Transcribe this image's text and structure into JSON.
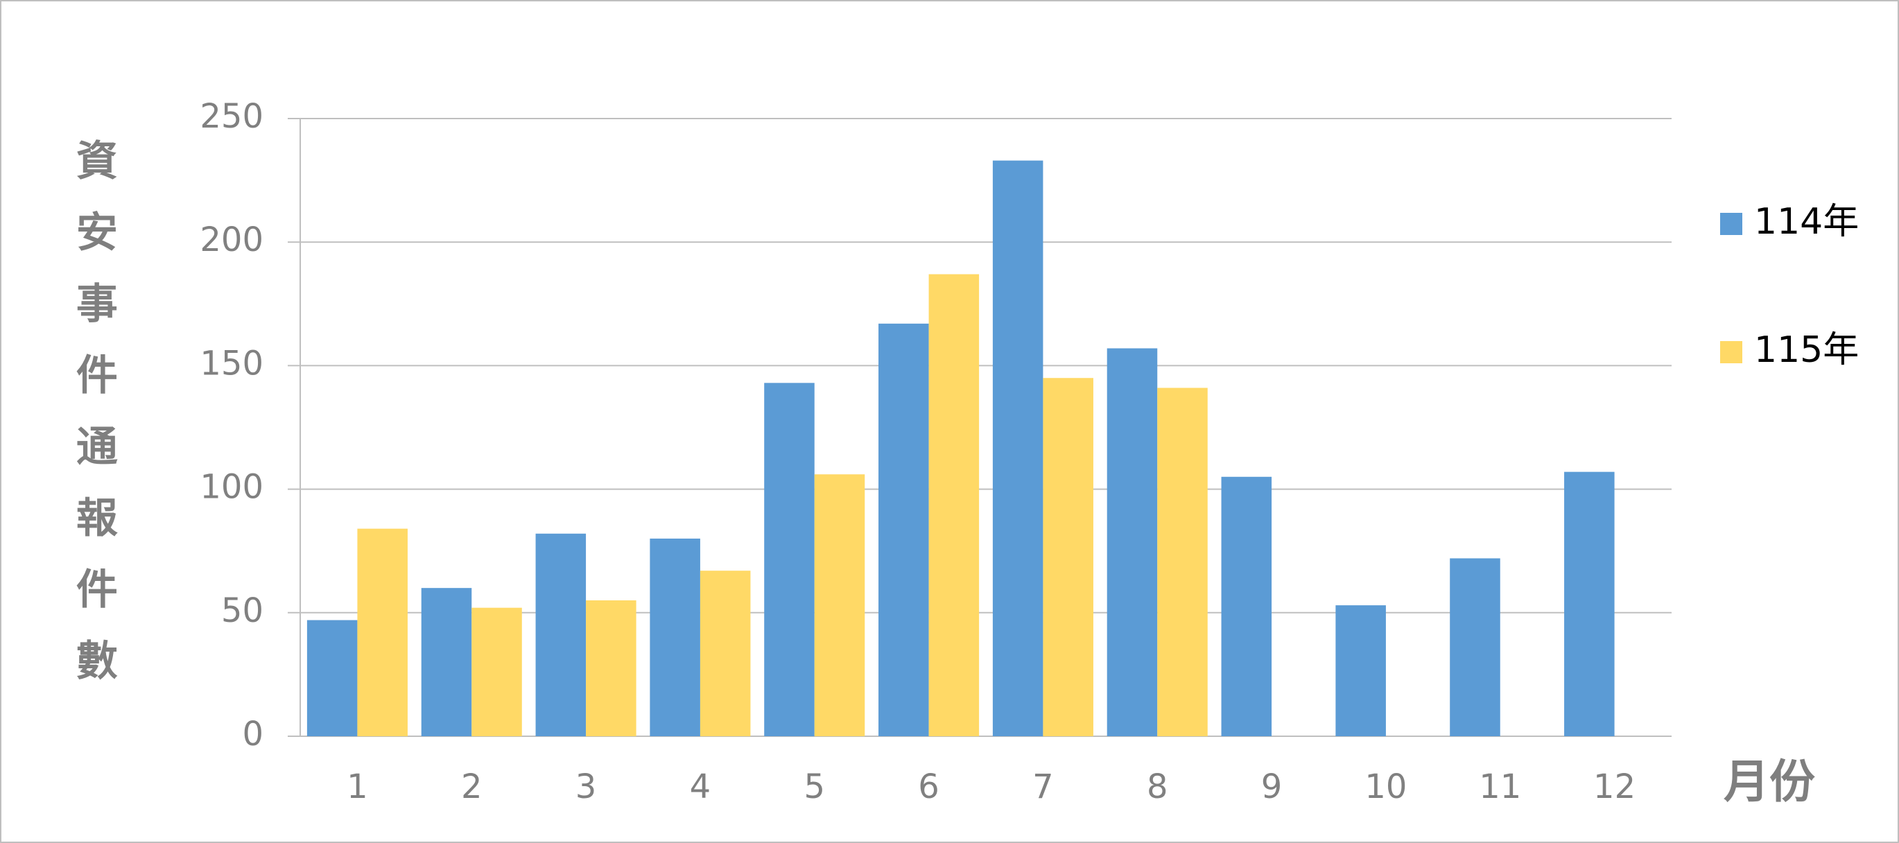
{
  "chart_data": {
    "type": "bar",
    "y_label": "資安事件通報件數",
    "x_label": "月份",
    "categories": [
      "1",
      "2",
      "3",
      "4",
      "5",
      "6",
      "7",
      "8",
      "9",
      "10",
      "11",
      "12"
    ],
    "series": [
      {
        "name": "114年",
        "color": "#5b9bd5",
        "values": [
          47,
          60,
          82,
          80,
          143,
          167,
          233,
          157,
          105,
          53,
          72,
          107
        ]
      },
      {
        "name": "115年",
        "color": "#ffd966",
        "values": [
          84,
          52,
          55,
          67,
          106,
          187,
          145,
          141,
          null,
          null,
          null,
          null
        ]
      }
    ],
    "ylim": [
      0,
      250
    ],
    "yticks": [
      0,
      50,
      100,
      150,
      200,
      250
    ],
    "grid": true,
    "legend": "right"
  }
}
